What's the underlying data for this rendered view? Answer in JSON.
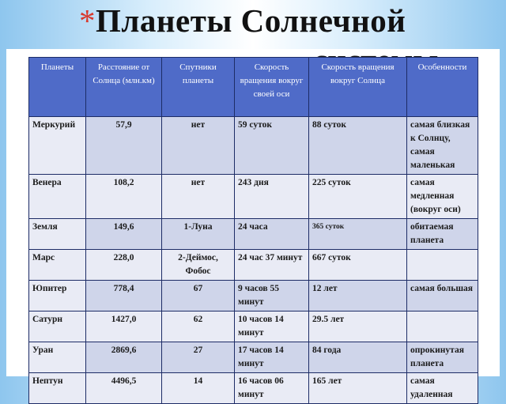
{
  "title": {
    "star": "*",
    "line1": "Планеты Солнечной",
    "line2": "системы"
  },
  "table": {
    "headers": [
      "Планеты",
      "Расстояние от Солнца (млн.км)",
      "Спутники планеты",
      "Скорость вращения вокруг своей оси",
      "Скорость вращения вокруг Солнца",
      "Особенности"
    ],
    "rows": [
      [
        "Меркурий",
        "57,9",
        "нет",
        "59 суток",
        "88 суток",
        "самая близкая к Солнцу, самая маленькая"
      ],
      [
        "Венера",
        "108,2",
        "нет",
        "243 дня",
        "225 суток",
        "самая медленная (вокруг оси)"
      ],
      [
        "Земля",
        "149,6",
        "1-Луна",
        "24 часа",
        "365 суток",
        "обитаемая планета"
      ],
      [
        "Марс",
        "228,0",
        "2-Деймос, Фобос",
        "24 час 37 минут",
        "667 суток",
        ""
      ],
      [
        "Юпитер",
        "778,4",
        "67",
        "9 часов 55 минут",
        "12 лет",
        "самая большая"
      ],
      [
        "Сатурн",
        "1427,0",
        "62",
        "10 часов 14 минут",
        "29.5 лет",
        ""
      ],
      [
        "Уран",
        "2869,6",
        "27",
        "17 часов 14 минут",
        "84 года",
        "опрокинутая планета"
      ],
      [
        "Нептун",
        "4496,5",
        "14",
        "16 часов 06 минут",
        "165 лет",
        "самая удаленная"
      ]
    ]
  },
  "colors": {
    "header": "#4f6bc8",
    "row_dark": "#cfd5ea",
    "row_light": "#e9ebf5",
    "star": "#d8382c"
  }
}
